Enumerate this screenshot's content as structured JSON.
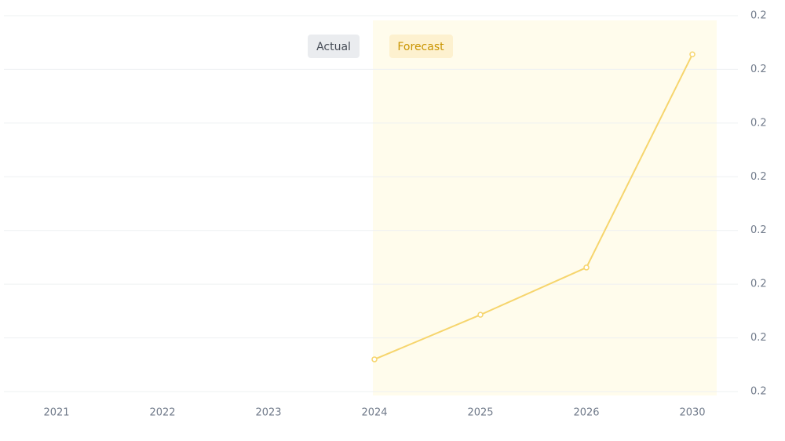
{
  "chart_data": {
    "type": "line",
    "legend": [
      "Actual",
      "Forecast"
    ],
    "categories": [
      "2021",
      "2022",
      "2023",
      "2024",
      "2025",
      "2026",
      "2030"
    ],
    "series": [
      {
        "color": "#f6d56d",
        "values": [
          null,
          null,
          null,
          0.2006,
          0.20143,
          0.20231,
          0.20628
        ]
      }
    ],
    "ylim": [
      0.2,
      0.207
    ],
    "yticks": [
      0.2,
      {
        "value": 0.201,
        "label": "0.2"
      },
      {
        "value": 0.202,
        "label": "0.2"
      },
      {
        "value": 0.203,
        "label": "0.2"
      },
      {
        "value": 0.204,
        "label": "0.2"
      },
      {
        "value": 0.205,
        "label": "0.2"
      },
      {
        "value": 0.206,
        "label": "0.2"
      },
      {
        "value": 0.207,
        "label": "0.2"
      }
    ],
    "grid": true
  }
}
